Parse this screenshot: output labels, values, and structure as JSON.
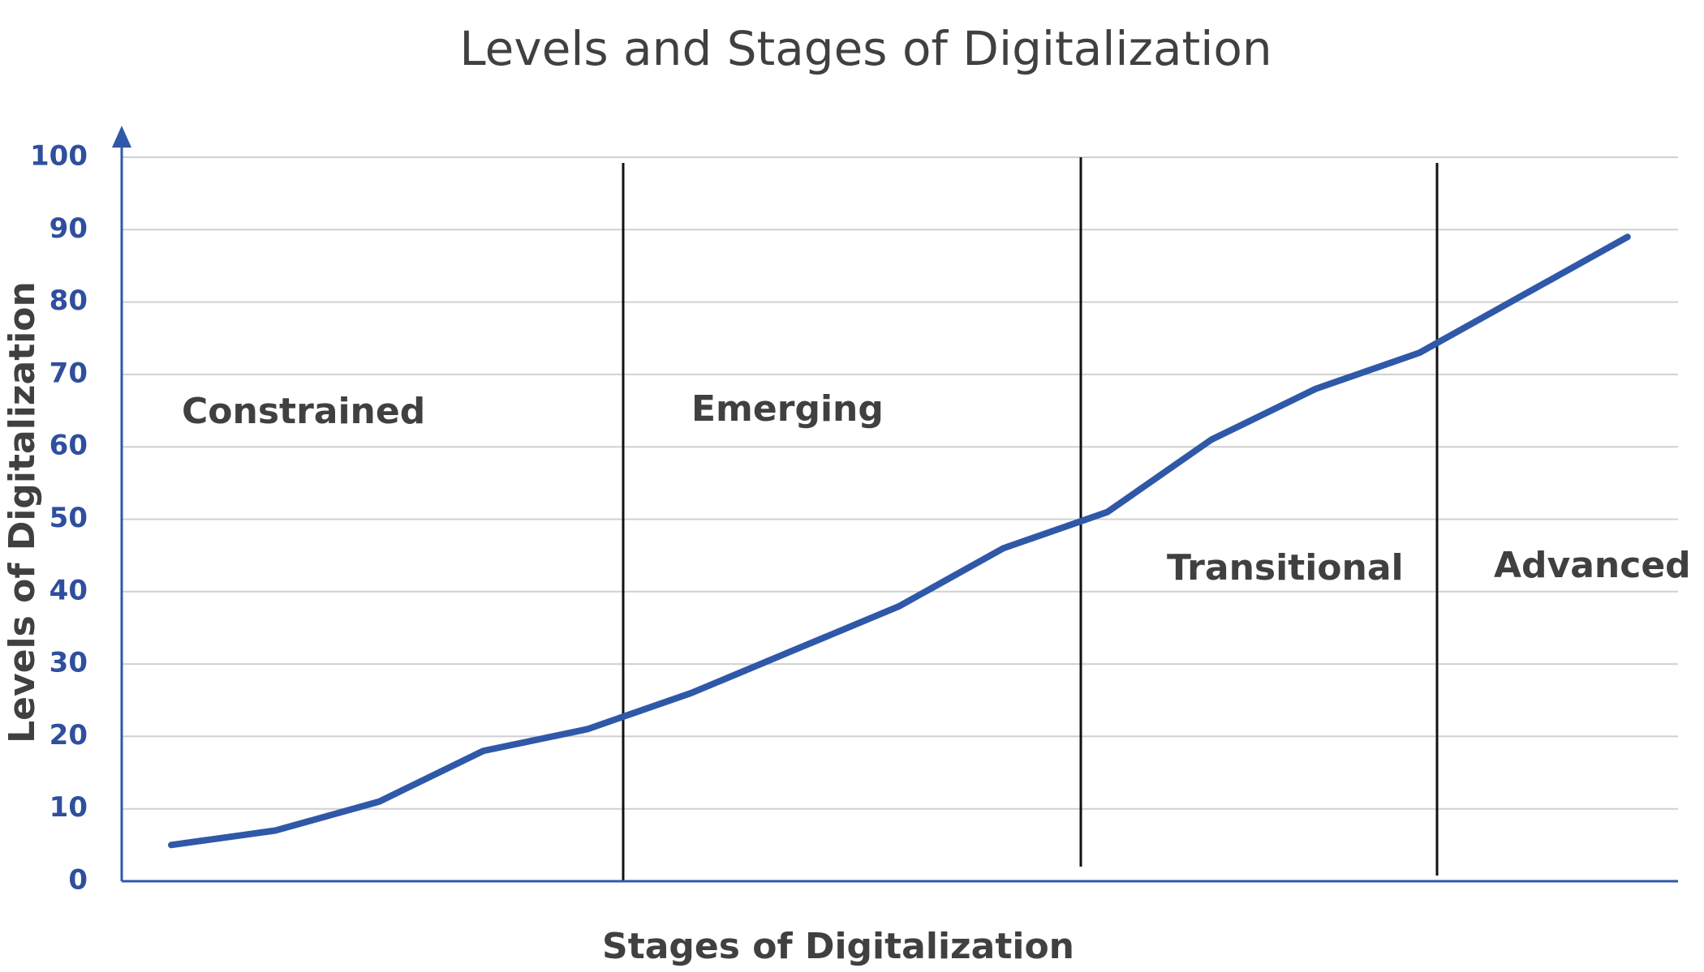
{
  "chart_data": {
    "type": "line",
    "title": "Levels and Stages of Digitalization",
    "x_label": "Stages of Digitalization",
    "y_label": "Levels of Digitalization",
    "categories": [
      null,
      null,
      null,
      null,
      null,
      null,
      null,
      null,
      null,
      null,
      null,
      null,
      null,
      null,
      null
    ],
    "series": [
      {
        "name": "Levels of Digitalization",
        "color": "#2f58a8",
        "values": [
          5,
          7,
          11,
          18,
          21,
          26,
          32,
          38,
          46,
          51,
          61,
          68,
          73,
          81,
          89
        ]
      }
    ],
    "ylim": [
      0,
      100
    ],
    "yticks": [
      0,
      10,
      20,
      30,
      40,
      50,
      60,
      70,
      80,
      90,
      100
    ],
    "grid": true,
    "stages": [
      "Constrained",
      "Emerging",
      "Transitional",
      "Advanced"
    ]
  }
}
